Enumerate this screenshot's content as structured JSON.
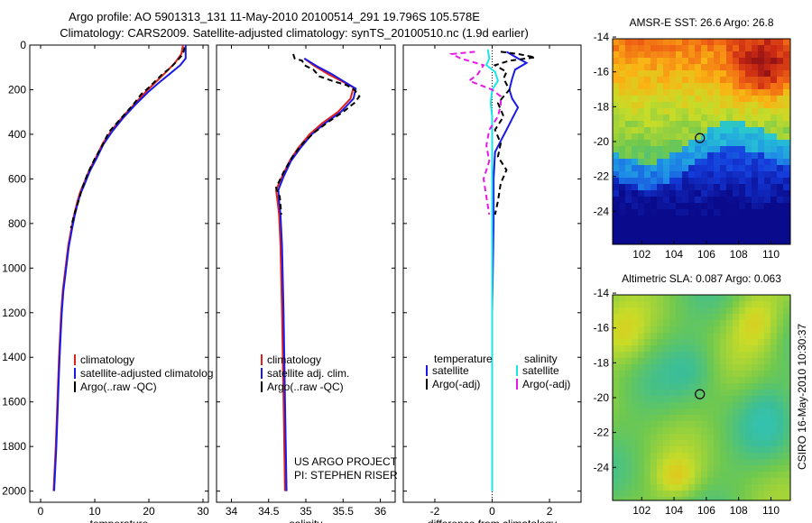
{
  "title_line1": "Argo profile: AO 5901313_131 11-May-2010 20100514_291 19.796S 105.578E",
  "title_line2": "Climatology: CARS2009. Satellite-adjusted climatology: synTS_20100510.nc (1.9d earlier)",
  "credit": "CSIRO 16-May-2010 10:30:37",
  "colors": {
    "red": "#e0201b",
    "blue": "#1a1ae6",
    "black": "#000000",
    "cyan": "#18e6e6",
    "magenta": "#e619e6"
  },
  "chart_data": [
    {
      "type": "line",
      "xlabel": "temperature",
      "ylabel": "",
      "xlim": [
        -2,
        31
      ],
      "ylim": [
        2050,
        0
      ],
      "xticks": [
        0,
        10,
        20,
        30
      ],
      "yticks": [
        0,
        200,
        400,
        600,
        800,
        1000,
        1200,
        1400,
        1600,
        1800,
        2000
      ],
      "legend": [
        "climatology",
        "satellite-adjusted climatolog",
        "Argo(..raw -QC)"
      ],
      "legend_position": "lower-center",
      "series": [
        {
          "name": "climatology",
          "color": "red",
          "dash": "",
          "points": [
            [
              26.3,
              0
            ],
            [
              26.0,
              40
            ],
            [
              24.8,
              80
            ],
            [
              23.2,
              120
            ],
            [
              21.5,
              160
            ],
            [
              19.8,
              200
            ],
            [
              17.5,
              260
            ],
            [
              15.2,
              320
            ],
            [
              13.2,
              380
            ],
            [
              11.5,
              440
            ],
            [
              10.3,
              500
            ],
            [
              9.0,
              560
            ],
            [
              8.0,
              620
            ],
            [
              7.3,
              660
            ],
            [
              6.8,
              700
            ],
            [
              6.2,
              760
            ],
            [
              5.7,
              820
            ],
            [
              5.1,
              900
            ],
            [
              4.6,
              1000
            ],
            [
              4.1,
              1100
            ],
            [
              3.8,
              1200
            ],
            [
              3.4,
              1400
            ],
            [
              3.1,
              1600
            ],
            [
              2.8,
              1800
            ],
            [
              2.4,
              2000
            ]
          ]
        },
        {
          "name": "satellite-adjusted climatolog",
          "color": "blue",
          "dash": "",
          "points": [
            [
              26.8,
              0
            ],
            [
              26.8,
              60
            ],
            [
              25.8,
              90
            ],
            [
              23.8,
              130
            ],
            [
              21.8,
              170
            ],
            [
              19.9,
              210
            ],
            [
              17.6,
              265
            ],
            [
              15.3,
              325
            ],
            [
              13.3,
              385
            ],
            [
              11.6,
              445
            ],
            [
              10.4,
              505
            ],
            [
              9.1,
              565
            ],
            [
              8.1,
              625
            ],
            [
              7.4,
              665
            ],
            [
              6.9,
              705
            ],
            [
              6.3,
              765
            ],
            [
              5.8,
              825
            ],
            [
              5.2,
              905
            ],
            [
              4.7,
              1005
            ],
            [
              4.2,
              1105
            ],
            [
              3.9,
              1205
            ],
            [
              3.5,
              1405
            ],
            [
              3.2,
              1605
            ],
            [
              2.9,
              1805
            ],
            [
              2.5,
              2000
            ]
          ]
        },
        {
          "name": "Argo(..raw -QC)",
          "color": "black",
          "dash": "6,4",
          "points": [
            [
              26.6,
              10
            ],
            [
              26.3,
              40
            ],
            [
              25.6,
              60
            ],
            [
              24.1,
              100
            ],
            [
              22.5,
              130
            ],
            [
              20.0,
              190
            ],
            [
              18.6,
              220
            ],
            [
              17.0,
              270
            ],
            [
              14.8,
              330
            ],
            [
              12.6,
              390
            ],
            [
              11.4,
              450
            ],
            [
              10.0,
              510
            ],
            [
              8.7,
              575
            ],
            [
              7.7,
              640
            ],
            [
              7.0,
              700
            ],
            [
              6.2,
              760
            ],
            [
              5.6,
              820
            ]
          ]
        }
      ]
    },
    {
      "type": "line",
      "xlabel": "salinity",
      "xlim": [
        33.8,
        36.2
      ],
      "ylim": [
        2050,
        0
      ],
      "xticks": [
        34,
        34.5,
        35,
        35.5,
        36
      ],
      "legend": [
        "climatology",
        "satellite adj. clim.",
        "Argo(..raw -QC)"
      ],
      "legend_position": "lower-center",
      "annotations": [
        "US ARGO PROJECT",
        "PI: STEPHEN RISER"
      ],
      "series": [
        {
          "name": "climatology",
          "color": "red",
          "dash": "",
          "points": [
            [
              34.98,
              60
            ],
            [
              35.1,
              90
            ],
            [
              35.3,
              130
            ],
            [
              35.5,
              165
            ],
            [
              35.64,
              190
            ],
            [
              35.6,
              240
            ],
            [
              35.43,
              300
            ],
            [
              35.22,
              350
            ],
            [
              35.05,
              400
            ],
            [
              34.9,
              460
            ],
            [
              34.78,
              520
            ],
            [
              34.68,
              590
            ],
            [
              34.6,
              650
            ],
            [
              34.62,
              700
            ],
            [
              34.64,
              760
            ],
            [
              34.66,
              900
            ],
            [
              34.68,
              1200
            ],
            [
              34.7,
              1600
            ],
            [
              34.72,
              2000
            ]
          ]
        },
        {
          "name": "satellite adj. clim.",
          "color": "blue",
          "dash": "",
          "points": [
            [
              34.98,
              60
            ],
            [
              35.15,
              95
            ],
            [
              35.35,
              130
            ],
            [
              35.52,
              165
            ],
            [
              35.67,
              195
            ],
            [
              35.64,
              240
            ],
            [
              35.47,
              300
            ],
            [
              35.26,
              350
            ],
            [
              35.08,
              400
            ],
            [
              34.93,
              460
            ],
            [
              34.8,
              520
            ],
            [
              34.7,
              590
            ],
            [
              34.63,
              650
            ],
            [
              34.64,
              700
            ],
            [
              34.66,
              760
            ],
            [
              34.68,
              900
            ],
            [
              34.7,
              1200
            ],
            [
              34.72,
              1600
            ],
            [
              34.74,
              2000
            ]
          ]
        },
        {
          "name": "Argo(..raw -QC)",
          "color": "black",
          "dash": "6,4",
          "points": [
            [
              34.83,
              40
            ],
            [
              34.85,
              60
            ],
            [
              34.95,
              70
            ],
            [
              34.98,
              90
            ],
            [
              35.1,
              110
            ],
            [
              35.18,
              140
            ],
            [
              35.35,
              160
            ],
            [
              35.55,
              180
            ],
            [
              35.65,
              200
            ],
            [
              35.72,
              230
            ],
            [
              35.65,
              260
            ],
            [
              35.5,
              300
            ],
            [
              35.3,
              345
            ],
            [
              35.12,
              390
            ],
            [
              34.96,
              440
            ],
            [
              34.82,
              500
            ],
            [
              34.7,
              570
            ],
            [
              34.6,
              640
            ],
            [
              34.65,
              680
            ],
            [
              34.67,
              760
            ]
          ]
        }
      ]
    },
    {
      "type": "line",
      "xlabel": "difference from climatology",
      "xlim": [
        -3.1,
        3.1
      ],
      "ylim": [
        2050,
        0
      ],
      "xticks": [
        -2,
        0,
        2
      ],
      "legend_groups": [
        {
          "heading": "temperature",
          "items": [
            "satellite",
            "Argo(-adj)"
          ]
        },
        {
          "heading": "salinity",
          "items": [
            "satellite",
            "Argo(-adj)"
          ]
        }
      ],
      "legend_position": "lower-center",
      "series": [
        {
          "name": "satellite",
          "group": "temperature",
          "color": "blue",
          "dash": "",
          "points": [
            [
              0.5,
              30
            ],
            [
              0.9,
              60
            ],
            [
              1.2,
              80
            ],
            [
              0.8,
              110
            ],
            [
              0.7,
              150
            ],
            [
              0.6,
              200
            ],
            [
              0.7,
              240
            ],
            [
              0.9,
              280
            ],
            [
              0.7,
              330
            ],
            [
              0.5,
              380
            ],
            [
              0.3,
              430
            ],
            [
              0.1,
              480
            ],
            [
              0.05,
              600
            ],
            [
              0.05,
              800
            ],
            [
              0.0,
              1200
            ],
            [
              0.0,
              1600
            ],
            [
              0.0,
              2000
            ]
          ]
        },
        {
          "name": "Argo(-adj)",
          "group": "temperature",
          "color": "black",
          "dash": "6,4",
          "points": [
            [
              0.3,
              30
            ],
            [
              0.9,
              40
            ],
            [
              1.5,
              55
            ],
            [
              0.6,
              70
            ],
            [
              0.1,
              90
            ],
            [
              0.5,
              120
            ],
            [
              0.4,
              150
            ],
            [
              0.6,
              200
            ],
            [
              0.2,
              260
            ],
            [
              0.4,
              320
            ],
            [
              0.1,
              380
            ],
            [
              0.3,
              440
            ],
            [
              0.2,
              500
            ],
            [
              0.5,
              560
            ],
            [
              0.3,
              620
            ],
            [
              0.2,
              700
            ],
            [
              0.1,
              760
            ]
          ]
        },
        {
          "name": "satellite",
          "group": "salinity",
          "color": "cyan",
          "dash": "",
          "points": [
            [
              -0.15,
              20
            ],
            [
              -0.1,
              60
            ],
            [
              -0.2,
              90
            ],
            [
              0.1,
              120
            ],
            [
              0.2,
              160
            ],
            [
              0.0,
              200
            ],
            [
              -0.05,
              260
            ],
            [
              0.0,
              320
            ],
            [
              0.0,
              400
            ],
            [
              0.0,
              500
            ],
            [
              0.0,
              800
            ],
            [
              0.0,
              1200
            ],
            [
              0.0,
              1600
            ],
            [
              0.0,
              2000
            ]
          ]
        },
        {
          "name": "Argo(-adj)",
          "group": "salinity",
          "color": "magenta",
          "dash": "6,4",
          "points": [
            [
              -0.6,
              30
            ],
            [
              -1.4,
              40
            ],
            [
              -1.1,
              60
            ],
            [
              -0.3,
              90
            ],
            [
              -0.5,
              130
            ],
            [
              -0.8,
              160
            ],
            [
              0.0,
              200
            ],
            [
              0.3,
              230
            ],
            [
              0.3,
              270
            ],
            [
              0.2,
              320
            ],
            [
              -0.1,
              380
            ],
            [
              -0.2,
              450
            ],
            [
              -0.1,
              520
            ],
            [
              -0.3,
              600
            ],
            [
              -0.2,
              680
            ],
            [
              -0.1,
              760
            ]
          ]
        }
      ]
    },
    {
      "type": "heatmap",
      "title": "AMSR-E SST: 26.6 Argo: 26.8",
      "xticks": [
        102,
        104,
        106,
        108,
        110
      ],
      "yticks": [
        -14,
        -16,
        -18,
        -20,
        -22,
        -24
      ],
      "xlim": [
        100.2,
        111.2
      ],
      "ylim": [
        -25.9,
        -14.1
      ],
      "marker": [
        105.6,
        -19.8
      ]
    },
    {
      "type": "heatmap",
      "title": "Altimetric SLA: 0.087 Argo: 0.063",
      "xticks": [
        102,
        104,
        106,
        108,
        110
      ],
      "yticks": [
        -14,
        -16,
        -18,
        -20,
        -22,
        -24
      ],
      "xlim": [
        100.2,
        111.2
      ],
      "ylim": [
        -25.9,
        -14.1
      ],
      "marker": [
        105.6,
        -19.8
      ]
    }
  ]
}
